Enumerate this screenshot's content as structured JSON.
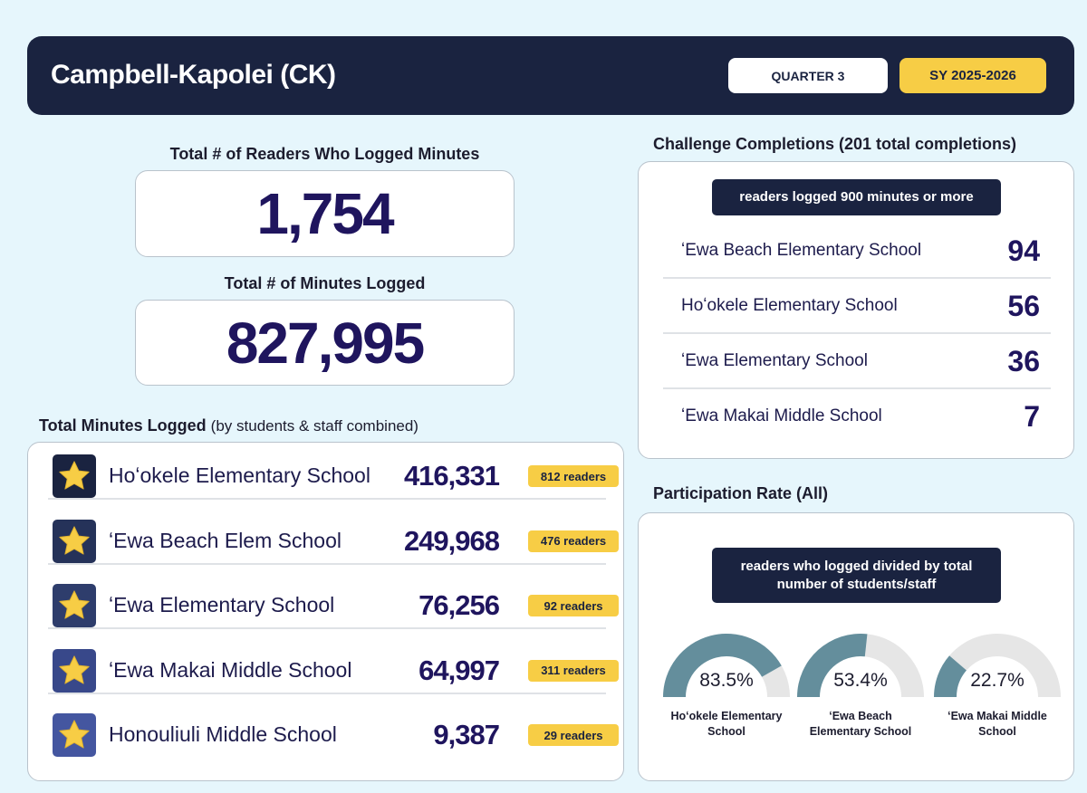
{
  "header": {
    "title": "Campbell-Kapolei (CK)",
    "quarter": "QUARTER 3",
    "school_year": "SY 2025-2026"
  },
  "totals": {
    "readers_label": "Total # of Readers Who Logged Minutes",
    "readers_value": "1,754",
    "minutes_label": "Total # of Minutes Logged",
    "minutes_value": "827,995"
  },
  "minutes_section": {
    "title": "Total Minutes Logged",
    "subtitle": "(by students & staff combined)",
    "rows": [
      {
        "school": "Hoʻokele Elementary School",
        "minutes": "416,331",
        "readers": "812 readers",
        "star_bg": "#1a2340"
      },
      {
        "school": "ʻEwa Beach Elem School",
        "minutes": "249,968",
        "readers": "476 readers",
        "star_bg": "#253259"
      },
      {
        "school": "ʻEwa Elementary School",
        "minutes": "76,256",
        "readers": "92 readers",
        "star_bg": "#2e3d6c"
      },
      {
        "school": "ʻEwa Makai Middle School",
        "minutes": "64,997",
        "readers": "311 readers",
        "star_bg": "#38488a"
      },
      {
        "school": "Honouliuli Middle School",
        "minutes": "9,387",
        "readers": "29 readers",
        "star_bg": "#4456a0"
      }
    ]
  },
  "challenge": {
    "title": "Challenge Completions (201 total completions)",
    "label": "readers logged 900 minutes or more",
    "rows": [
      {
        "school": "ʻEwa Beach Elementary School",
        "count": "94"
      },
      {
        "school": "Hoʻokele Elementary School",
        "count": "56"
      },
      {
        "school": "ʻEwa Elementary School",
        "count": "36"
      },
      {
        "school": "ʻEwa Makai Middle School",
        "count": "7"
      }
    ]
  },
  "participation": {
    "title": "Participation Rate (All)",
    "label_line1": "readers who logged divided by total",
    "label_line2": "number of students/staff",
    "gauges": [
      {
        "value": 83.5,
        "value_text": "83.5%",
        "name_line1": "Hoʻokele Elementary",
        "name_line2": "School"
      },
      {
        "value": 53.4,
        "value_text": "53.4%",
        "name_line1": "ʻEwa Beach",
        "name_line2": "Elementary School"
      },
      {
        "value": 22.7,
        "value_text": "22.7%",
        "name_line1": "ʻEwa Makai Middle",
        "name_line2": "School"
      }
    ],
    "fill_color": "#648e9c",
    "track_color": "#e6e6e6"
  },
  "icons": {
    "star": "star-icon"
  }
}
